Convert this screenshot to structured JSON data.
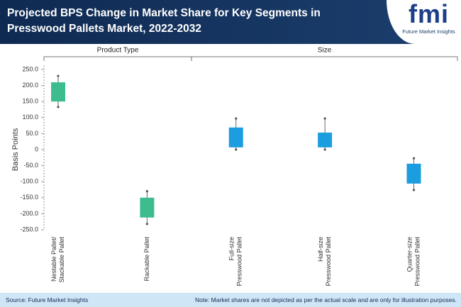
{
  "header": {
    "logo": "fmi",
    "logo_subtitle": "Future Market Insights"
  },
  "chart_data": {
    "type": "box",
    "title": "Projected BPS Change in Market Share for Key Segments in Presswood Pallets Market, 2022-2032",
    "y_label": "Basis Points",
    "ylim": [
      -250,
      250
    ],
    "yticks": [
      {
        "value": 250,
        "label": "250.0"
      },
      {
        "value": 200,
        "label": "200.0"
      },
      {
        "value": 150,
        "label": "150.0"
      },
      {
        "value": 100,
        "label": "100.0"
      },
      {
        "value": 50,
        "label": "50.0"
      },
      0,
      {
        "value": -50,
        "label": "-50.0"
      },
      {
        "value": -100,
        "label": "-100.0"
      },
      {
        "value": -150,
        "label": "-150.0"
      },
      {
        "value": -200,
        "label": "-200.0"
      },
      {
        "value": -250,
        "label": "-250.0"
      }
    ],
    "groups": [
      {
        "name": "Product Type",
        "color": "#3dbd8e",
        "categories": [
          [
            "Nestable Pallet/",
            "Stackable Pallet"
          ],
          [
            "Rackable Pallet"
          ]
        ],
        "low": [
          133,
          -232
        ],
        "q1": [
          150,
          -212
        ],
        "q3": [
          210,
          -150
        ],
        "high": [
          230,
          -130
        ]
      },
      {
        "name": "Size",
        "color": "#1b9ddf",
        "categories": [
          [
            "Full-size",
            "Presswood Pallet"
          ],
          [
            "Half-size",
            "Presswood Pallet"
          ],
          [
            "Quarter-size",
            "Presswood Pallet"
          ]
        ],
        "low": [
          0,
          0,
          -126
        ],
        "q1": [
          7,
          7,
          -106
        ],
        "q3": [
          69,
          53,
          -44
        ],
        "high": [
          97,
          97,
          -27
        ]
      }
    ]
  },
  "footer": {
    "source": "Source: Future Market Insights",
    "note": "Note: Market shares are not depicted as per the actual scale and are only for illustration purposes."
  }
}
